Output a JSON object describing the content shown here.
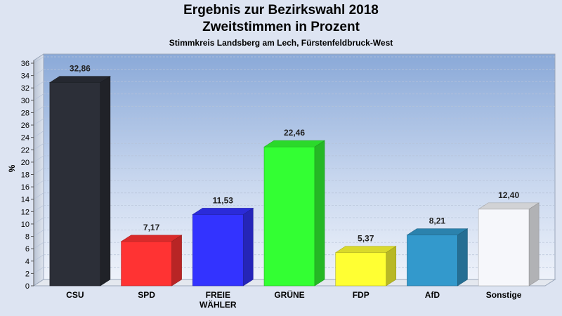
{
  "chart_data": {
    "type": "bar",
    "title": "Ergebnis zur Bezirkswahl 2018",
    "title_line2": "Zweitstimmen in Prozent",
    "subtitle": "Stimmkreis Landsberg am Lech, Fürstenfeldbruck-West",
    "ylabel": "%",
    "ylim": [
      0,
      36
    ],
    "yticks": [
      "0",
      "2",
      "4",
      "6",
      "8",
      "10",
      "12",
      "14",
      "16",
      "18",
      "20",
      "22",
      "24",
      "26",
      "28",
      "30",
      "32",
      "34",
      "36"
    ],
    "categories": [
      "CSU",
      "SPD",
      "FREIE WÄHLER",
      "GRÜNE",
      "FDP",
      "AfD",
      "Sonstige"
    ],
    "category_lines": [
      [
        "CSU"
      ],
      [
        "SPD"
      ],
      [
        "FREIE",
        "WÄHLER"
      ],
      [
        "GRÜNE"
      ],
      [
        "FDP"
      ],
      [
        "AfD"
      ],
      [
        "Sonstige"
      ]
    ],
    "values": [
      32.86,
      7.17,
      11.53,
      22.46,
      5.37,
      8.21,
      12.4
    ],
    "value_labels": [
      "32,86",
      "7,17",
      "11,53",
      "22,46",
      "5,37",
      "8,21",
      "12,40"
    ],
    "colors": [
      "#2c2f38",
      "#ff3333",
      "#3333ff",
      "#33ff33",
      "#ffff33",
      "#3399cc",
      "#f6f7fb"
    ],
    "grid": true
  }
}
